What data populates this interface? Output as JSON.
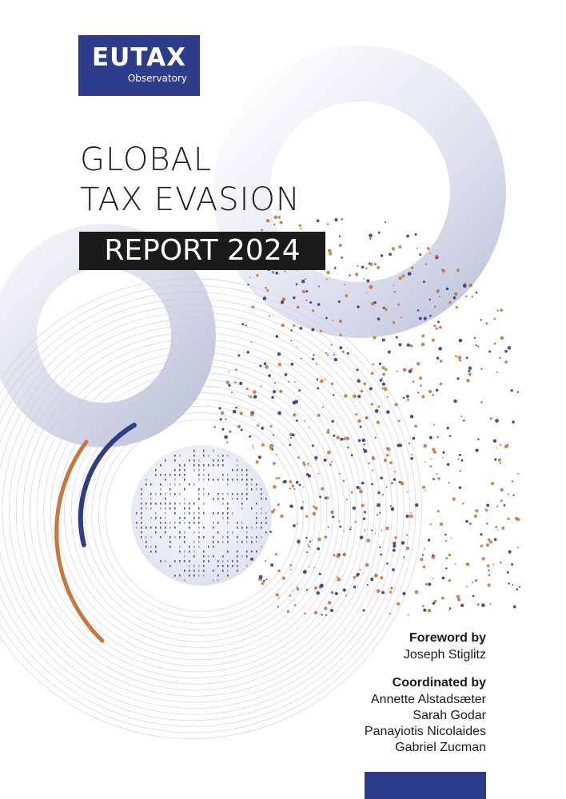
{
  "logo": {
    "main": "EUTAX",
    "sub": "Observatory"
  },
  "title": {
    "line1": "GLOBAL",
    "line2": "TAX EVASION",
    "line3": "REPORT 2024"
  },
  "foreword": {
    "heading": "Foreword by",
    "name": "Joseph Stiglitz"
  },
  "coordinated": {
    "heading": "Coordinated by",
    "names": [
      "Annette Alstadsæter",
      "Sarah Godar",
      "Panayiotis Nicolaides",
      "Gabriel Zucman"
    ]
  },
  "colors": {
    "navy": "#2e3c8c",
    "orange": "#c9763a",
    "title_bg": "#1b1b1b",
    "ring": "#c7cbe0"
  }
}
